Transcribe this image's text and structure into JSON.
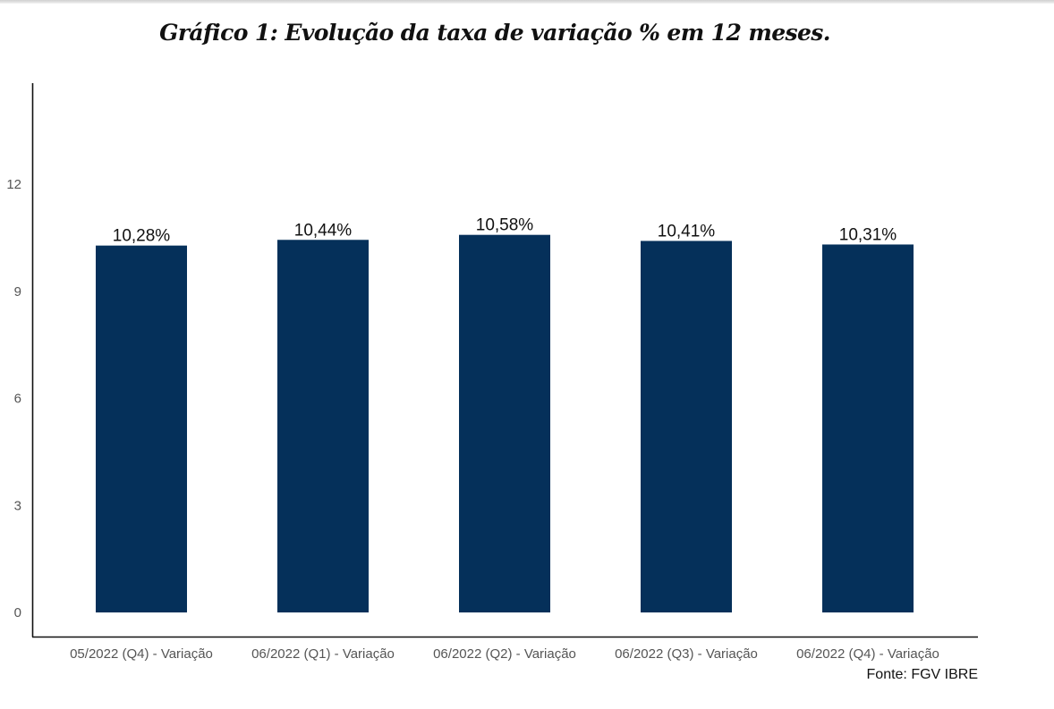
{
  "chart_data": {
    "type": "bar",
    "title": "Gráfico 1: Evolução da taxa de variação % em 12 meses.",
    "categories": [
      "05/2022 (Q4) - Variação",
      "06/2022 (Q1) - Variação",
      "06/2022 (Q2) - Variação",
      "06/2022 (Q3) - Variação",
      "06/2022 (Q4) - Variação"
    ],
    "values": [
      10.28,
      10.44,
      10.58,
      10.41,
      10.31
    ],
    "data_labels": [
      "10,28%",
      "10,44%",
      "10,58%",
      "10,41%",
      "10,31%"
    ],
    "xlabel": "",
    "ylabel": "",
    "ylim": [
      0,
      14.8
    ],
    "yticks": [
      0,
      3,
      6,
      9,
      12
    ],
    "grid": false,
    "bar_color": "#05305a",
    "source": "Fonte: FGV IBRE"
  }
}
